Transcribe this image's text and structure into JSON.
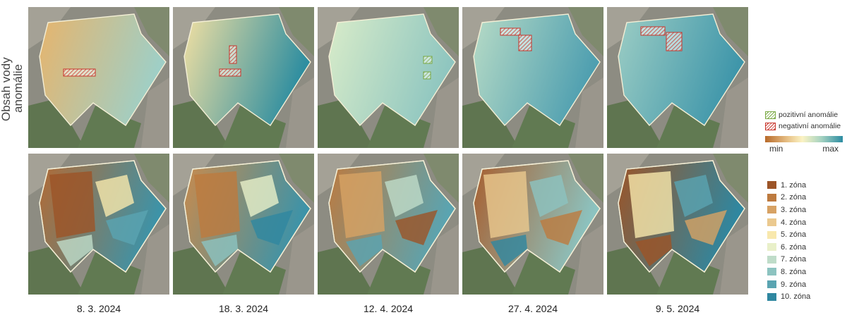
{
  "row_labels": {
    "line1": "Obsah vody",
    "line2": "anomálie"
  },
  "dates": [
    "8. 3. 2024",
    "18. 3. 2024",
    "12. 4. 2024",
    "27. 4. 2024",
    "9. 5. 2024"
  ],
  "anomaly_legend": [
    {
      "label": "pozitivní anomálie",
      "color": "#7aa843"
    },
    {
      "label": "negativní anomálie",
      "color": "#c8352b"
    }
  ],
  "scale": {
    "min_label": "min",
    "max_label": "max"
  },
  "zones": [
    {
      "label": "1. zóna",
      "color": "#9c5427"
    },
    {
      "label": "2. zóna",
      "color": "#bd7a3f"
    },
    {
      "label": "3. zóna",
      "color": "#d7a264"
    },
    {
      "label": "4. zóna",
      "color": "#ebc98f"
    },
    {
      "label": "5. zóna",
      "color": "#f8e8ad"
    },
    {
      "label": "6. zóna",
      "color": "#e9f0c9"
    },
    {
      "label": "7. zóna",
      "color": "#bfdcc9"
    },
    {
      "label": "8. zóna",
      "color": "#8cc3c0"
    },
    {
      "label": "9. zóna",
      "color": "#5aa4b1"
    },
    {
      "label": "10. zóna",
      "color": "#2f87a0"
    }
  ],
  "panels_top": [
    {
      "fill_from": "#e7b46c",
      "fill_to": "#9fcfc6",
      "anomaly": "negative"
    },
    {
      "fill_from": "#f2e0a2",
      "fill_to": "#2f8ea0",
      "anomaly": "negative"
    },
    {
      "fill_from": "#d9ecc9",
      "fill_to": "#8fc6c0",
      "anomaly": "positive"
    },
    {
      "fill_from": "#b7dbc6",
      "fill_to": "#4f9fb0",
      "anomaly": "negative"
    },
    {
      "fill_from": "#9ccdc4",
      "fill_to": "#3f96aa",
      "anomaly": "negative"
    }
  ],
  "panels_bottom": [
    {
      "fill_from": "#b36a34",
      "fill_to": "#3d93a8"
    },
    {
      "fill_from": "#c98a4c",
      "fill_to": "#3d93a8"
    },
    {
      "fill_from": "#bd7a3f",
      "fill_to": "#5aa4b1"
    },
    {
      "fill_from": "#a85e2e",
      "fill_to": "#8cc3c0"
    },
    {
      "fill_from": "#9c5427",
      "fill_to": "#2f87a0"
    }
  ]
}
